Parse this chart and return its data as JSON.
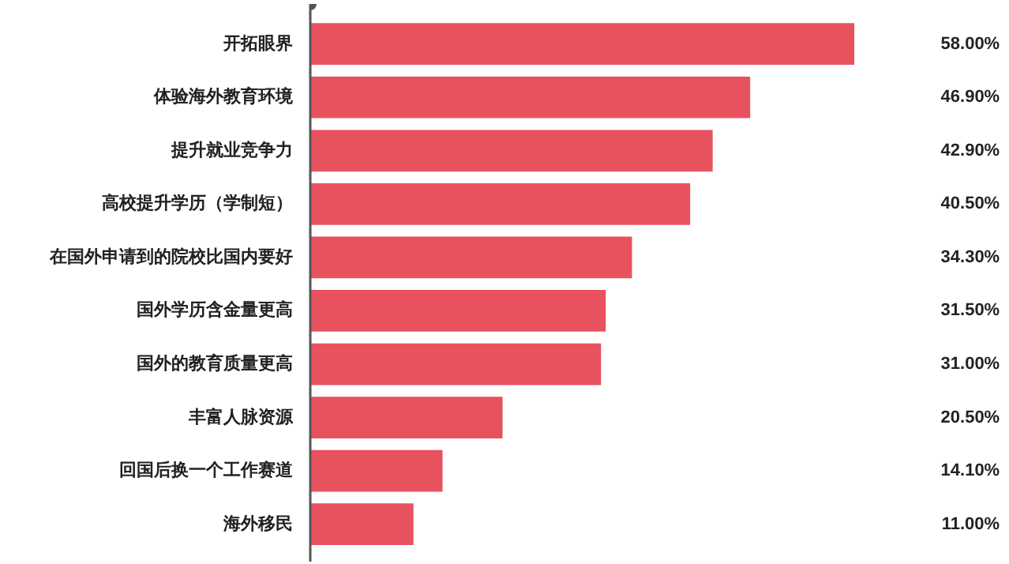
{
  "chart_data": {
    "type": "bar",
    "orientation": "horizontal",
    "categories": [
      "开拓眼界",
      "体验海外教育环境",
      "提升就业竞争力",
      "高校提升学历（学制短）",
      "在国外申请到的院校比国内要好",
      "国外学历含金量更高",
      "国外的教育质量更高",
      "丰富人脉资源",
      "回国后换一个工作赛道",
      "海外移民"
    ],
    "values": [
      58.0,
      46.9,
      42.9,
      40.5,
      34.3,
      31.5,
      31.0,
      20.5,
      14.1,
      11.0
    ],
    "value_labels": [
      "58.00%",
      "46.90%",
      "42.90%",
      "40.50%",
      "34.30%",
      "31.50%",
      "31.00%",
      "20.50%",
      "14.10%",
      "11.00%"
    ],
    "color": "#e8525f",
    "grid": false,
    "tick_labels": "y"
  }
}
